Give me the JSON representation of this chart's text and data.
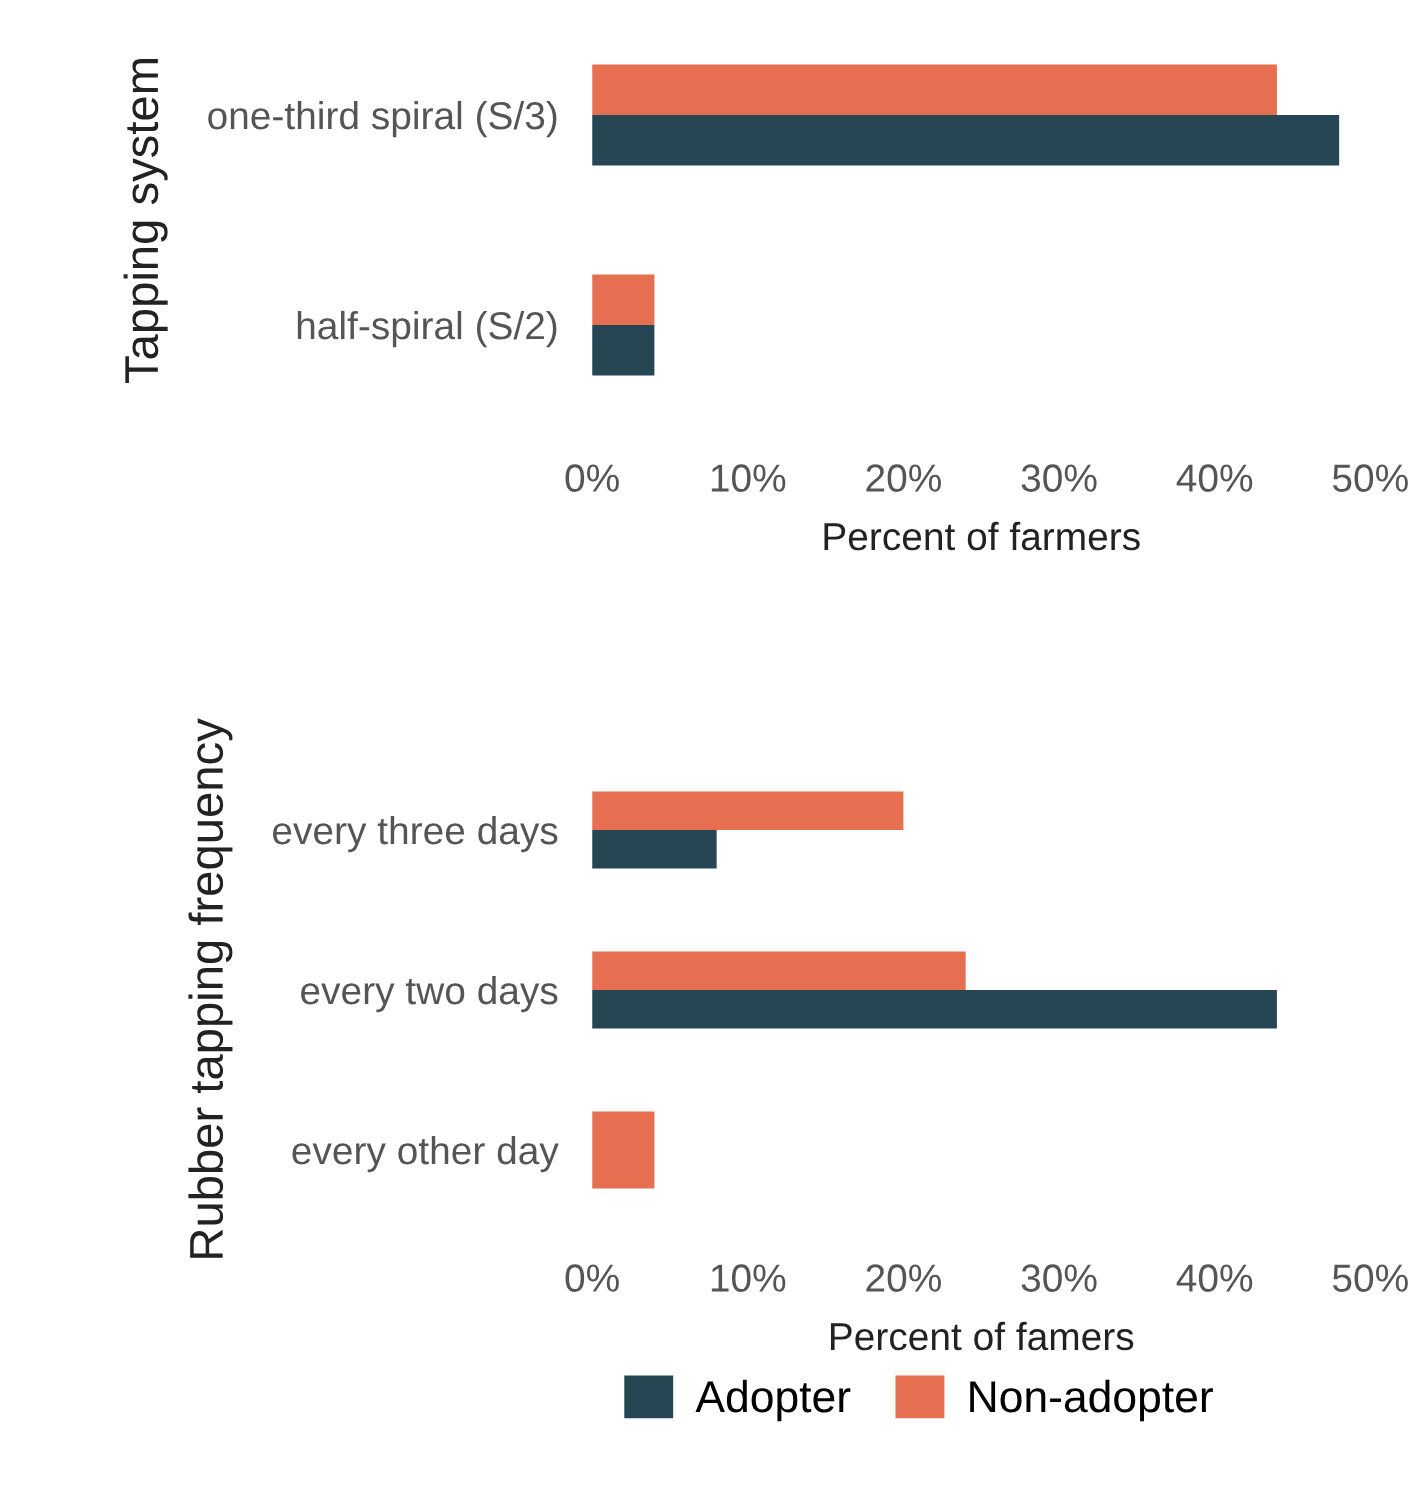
{
  "chart_data": [
    {
      "type": "bar",
      "orientation": "horizontal",
      "ylabel": "Tapping system",
      "xlabel": "Percent of farmers",
      "categories": [
        "one-third spiral (S/3)",
        "half-spiral (S/2)"
      ],
      "series": [
        {
          "color": "#264653",
          "values": [
            48,
            4
          ]
        },
        {
          "color": "#e76f51",
          "values": [
            44,
            4
          ]
        }
      ],
      "xlim": [
        0,
        50
      ],
      "xticks": [
        {
          "value": 0,
          "label": "0%"
        },
        {
          "value": 10,
          "label": "10%"
        },
        {
          "value": 20,
          "label": "20%"
        },
        {
          "value": 30,
          "label": "30%"
        },
        {
          "value": 40,
          "label": "40%"
        },
        {
          "value": 50,
          "label": "50%"
        }
      ],
      "grid": false,
      "legend": false
    },
    {
      "type": "bar",
      "orientation": "horizontal",
      "ylabel": "Rubber tapping frequency",
      "xlabel": "Percent of famers",
      "categories": [
        "every three days",
        "every two days",
        "every other day"
      ],
      "series": [
        {
          "name": "Adopter",
          "color": "#264653",
          "values": [
            8,
            44,
            null
          ]
        },
        {
          "name": "Non-adopter",
          "color": "#e76f51",
          "values": [
            20,
            24,
            4
          ]
        }
      ],
      "xlim": [
        0,
        50
      ],
      "xticks": [
        {
          "value": 0,
          "label": "0%"
        },
        {
          "value": 10,
          "label": "10%"
        },
        {
          "value": 20,
          "label": "20%"
        },
        {
          "value": 30,
          "label": "30%"
        },
        {
          "value": 40,
          "label": "40%"
        },
        {
          "value": 50,
          "label": "50%"
        }
      ],
      "grid": false,
      "legend": "bottom"
    }
  ]
}
